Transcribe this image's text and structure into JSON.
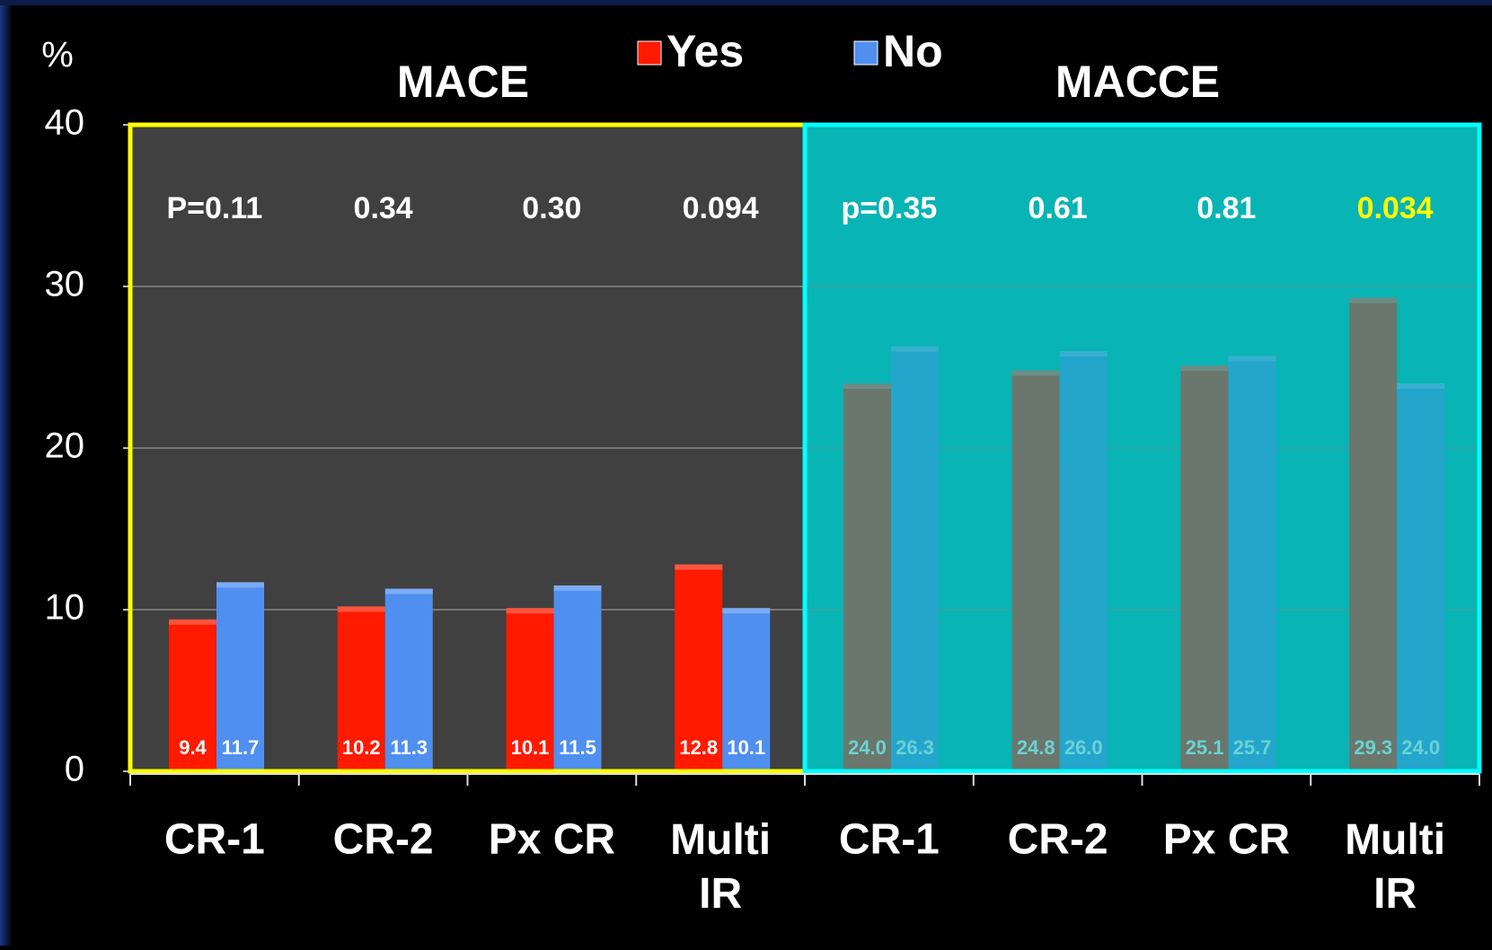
{
  "chart_data": {
    "type": "bar",
    "y_label": "%",
    "categories": [
      "CR-1",
      "CR-2",
      "Px CR",
      "Multi IR",
      "CR-1",
      "CR-2",
      "Px CR",
      "Multi IR"
    ],
    "series": [
      {
        "name": "Yes",
        "color": "#ff1a00",
        "values": [
          9.4,
          10.2,
          10.1,
          12.8,
          24.0,
          24.8,
          25.1,
          29.3
        ],
        "value_labels": [
          "9.4",
          "10.2",
          "10.1",
          "12.8",
          "24.0",
          "24.8",
          "25.1",
          "29.3"
        ]
      },
      {
        "name": "No",
        "color": "#4f8ff0",
        "values": [
          11.7,
          11.3,
          11.5,
          10.1,
          26.3,
          26.0,
          25.7,
          24.0
        ],
        "value_labels": [
          "11.7",
          "11.3",
          "11.5",
          "10.1",
          "26.3",
          "26.0",
          "25.7",
          "24.0"
        ]
      }
    ],
    "groups": [
      {
        "title": "MACE",
        "border": "#ffff00",
        "background": "#404040"
      },
      {
        "title": "MACCE",
        "border": "#00ffff",
        "background": "#08b4b4"
      }
    ],
    "annotations": [
      {
        "text": "P=0.11",
        "color": "#ffffff"
      },
      {
        "text": "0.34",
        "color": "#ffffff"
      },
      {
        "text": "0.30",
        "color": "#ffffff"
      },
      {
        "text": "0.094",
        "color": "#ffffff"
      },
      {
        "text": "p=0.35",
        "color": "#ffffff"
      },
      {
        "text": "0.61",
        "color": "#ffffff"
      },
      {
        "text": "0.81",
        "color": "#ffffff"
      },
      {
        "text": "0.034",
        "color": "#ffff00"
      }
    ],
    "ylim": [
      0,
      40
    ],
    "yticks": [
      0,
      10,
      20,
      30,
      40
    ],
    "grid": true,
    "legend": "top"
  }
}
